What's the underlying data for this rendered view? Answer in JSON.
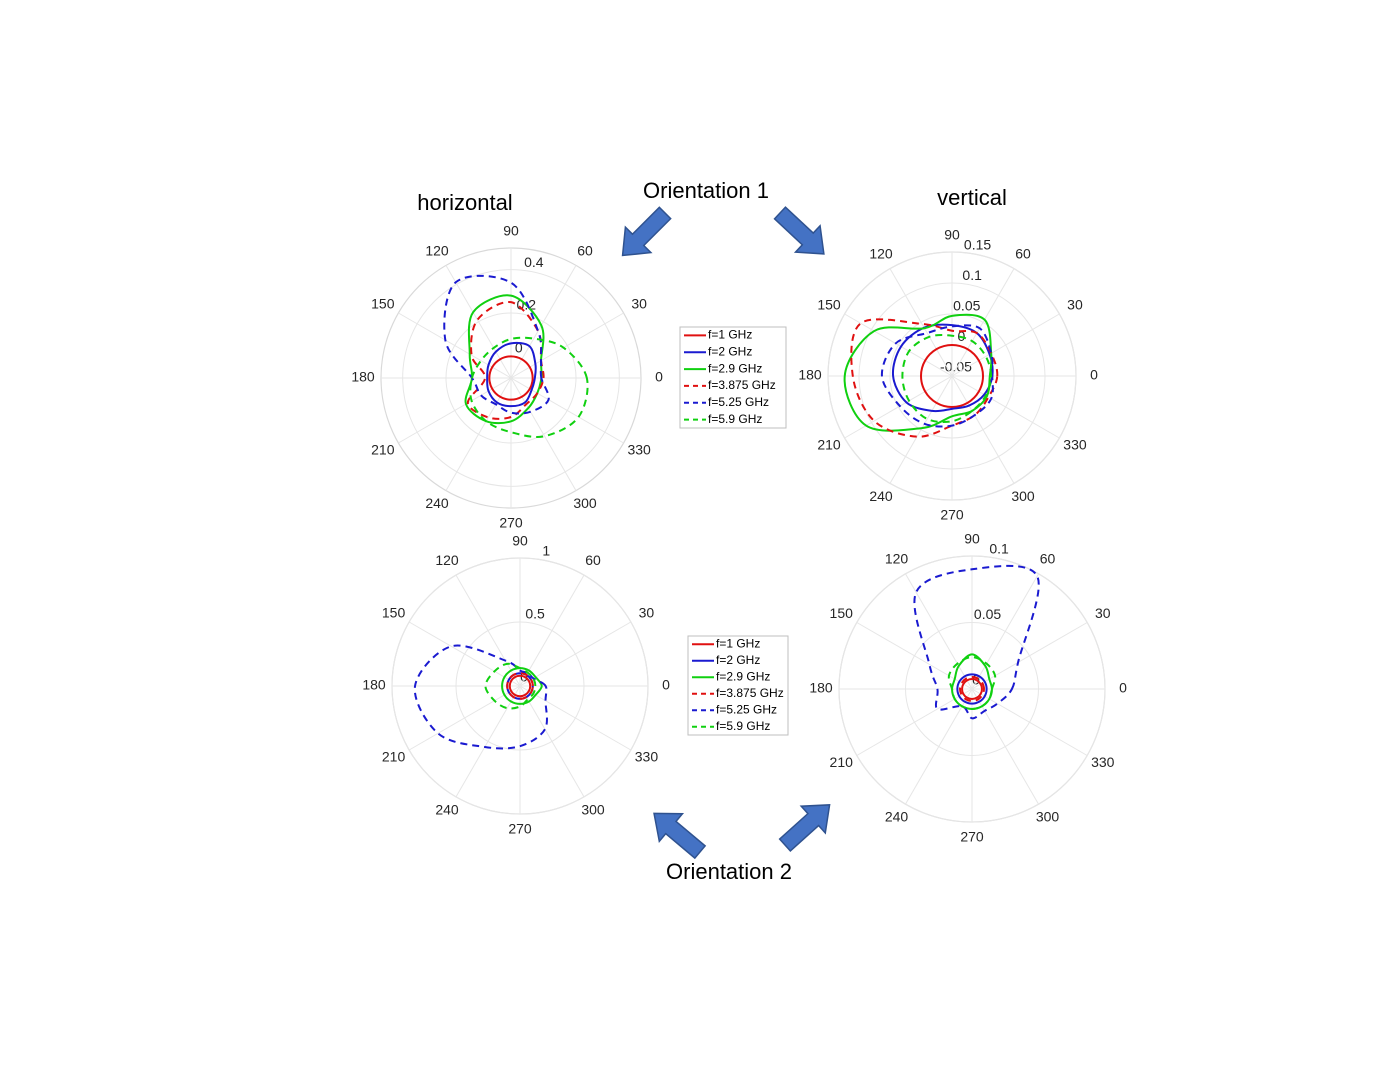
{
  "chart_data": [
    {
      "type": "polar",
      "title": "horizontal",
      "legend": "right",
      "theta": [
        0,
        30,
        60,
        90,
        120,
        150,
        180,
        210,
        240,
        270,
        300,
        330
      ],
      "thetaticks": [
        0,
        30,
        60,
        90,
        120,
        150,
        180,
        210,
        240,
        270,
        300,
        330
      ],
      "rlim": [
        -0.1,
        0.5
      ],
      "rticks": [
        0,
        0.2,
        0.4
      ],
      "series": [
        {
          "name": "f=1 GHz",
          "color": "#e01010",
          "dash": false,
          "values": [
            0,
            0,
            0,
            0,
            0,
            0,
            0,
            0,
            0,
            0,
            0,
            0
          ]
        },
        {
          "name": "f=2 GHz",
          "color": "#1a1ad0",
          "dash": false,
          "values": [
            0.01,
            0.03,
            0.07,
            0.06,
            0.04,
            0.02,
            0.01,
            0.02,
            0.03,
            0.03,
            0.03,
            0.01
          ]
        },
        {
          "name": "f=2.9 GHz",
          "color": "#10d010",
          "dash": false,
          "values": [
            0.04,
            0.06,
            0.18,
            0.28,
            0.25,
            0.12,
            0.08,
            0.14,
            0.13,
            0.1,
            0.06,
            0.04
          ]
        },
        {
          "name": "f=3.875 GHz",
          "color": "#e01010",
          "dash": true,
          "values": [
            0.05,
            0.06,
            0.15,
            0.25,
            0.21,
            0.11,
            0.02,
            0.13,
            0.11,
            0.08,
            0.04,
            0.04
          ]
        },
        {
          "name": "f=5.25 GHz",
          "color": "#1a1ad0",
          "dash": true,
          "values": [
            0.04,
            0.06,
            0.15,
            0.34,
            0.41,
            0.25,
            0.08,
            0.06,
            0.04,
            0.06,
            0.08,
            0.1
          ]
        },
        {
          "name": "f=5.9 GHz",
          "color": "#10d010",
          "dash": true,
          "values": [
            0.25,
            0.18,
            0.11,
            0.08,
            0.06,
            0.06,
            0.08,
            0.11,
            0.13,
            0.15,
            0.21,
            0.26
          ]
        }
      ]
    },
    {
      "type": "polar",
      "title": "vertical",
      "theta": [
        0,
        30,
        60,
        90,
        120,
        150,
        180,
        210,
        240,
        270,
        300,
        330
      ],
      "thetaticks": [
        0,
        30,
        60,
        90,
        120,
        150,
        180,
        210,
        240,
        270,
        300,
        330
      ],
      "rlim": [
        -0.05,
        0.15
      ],
      "rticks": [
        -0.05,
        0,
        0.05,
        0.1,
        0.15
      ],
      "series": [
        {
          "color": "#e01010",
          "dash": false,
          "values": [
            0,
            0,
            0,
            0,
            0,
            0,
            0,
            0,
            0,
            0,
            0,
            0
          ]
        },
        {
          "color": "#1a1ad0",
          "dash": false,
          "values": [
            0.015,
            0.02,
            0.03,
            0.032,
            0.04,
            0.045,
            0.045,
            0.035,
            0.015,
            0.003,
            0.005,
            0.01
          ]
        },
        {
          "color": "#10d010",
          "dash": false,
          "values": [
            0.011,
            0.023,
            0.055,
            0.047,
            0.039,
            0.095,
            0.123,
            0.11,
            0.047,
            0.015,
            0.015,
            0.015
          ]
        },
        {
          "color": "#e01010",
          "dash": true,
          "values": [
            0.023,
            0.023,
            0.03,
            0.023,
            0.047,
            0.12,
            0.11,
            0.095,
            0.063,
            0.03,
            0.023,
            0.018
          ]
        },
        {
          "color": "#1a1ad0",
          "dash": true,
          "values": [
            0.015,
            0.023,
            0.039,
            0.03,
            0.03,
            0.055,
            0.063,
            0.047,
            0.039,
            0.03,
            0.023,
            0.023
          ]
        },
        {
          "color": "#10d010",
          "dash": true,
          "values": [
            0.013,
            0.013,
            0.015,
            0.015,
            0.023,
            0.03,
            0.03,
            0.03,
            0.03,
            0.023,
            0.015,
            0.013
          ]
        }
      ]
    },
    {
      "type": "polar",
      "legend": "right",
      "theta": [
        0,
        30,
        60,
        90,
        120,
        150,
        180,
        210,
        240,
        270,
        300,
        330
      ],
      "thetaticks": [
        0,
        30,
        60,
        90,
        120,
        150,
        180,
        210,
        240,
        270,
        300,
        330
      ],
      "rlim": [
        0,
        1
      ],
      "rticks": [
        0,
        0.5,
        1
      ],
      "series": [
        {
          "name": "f=1 GHz",
          "color": "#e01010",
          "dash": false,
          "values": [
            0.08,
            0.08,
            0.08,
            0.08,
            0.08,
            0.08,
            0.08,
            0.08,
            0.08,
            0.08,
            0.08,
            0.08
          ]
        },
        {
          "name": "f=2 GHz",
          "color": "#1a1ad0",
          "dash": false,
          "values": [
            0.1,
            0.1,
            0.1,
            0.1,
            0.1,
            0.1,
            0.1,
            0.1,
            0.1,
            0.1,
            0.1,
            0.1
          ]
        },
        {
          "name": "f=2.9 GHz",
          "color": "#10d010",
          "dash": false,
          "values": [
            0.17,
            0.14,
            0.14,
            0.14,
            0.14,
            0.14,
            0.14,
            0.14,
            0.14,
            0.14,
            0.14,
            0.14
          ]
        },
        {
          "name": "f=3.875 GHz",
          "color": "#e01010",
          "dash": true,
          "values": [
            0.1,
            0.1,
            0.1,
            0.1,
            0.1,
            0.1,
            0.1,
            0.1,
            0.1,
            0.1,
            0.1,
            0.1
          ]
        },
        {
          "name": "f=5.25 GHz",
          "color": "#1a1ad0",
          "dash": true,
          "values": [
            0.2,
            0.12,
            0.12,
            0.12,
            0.23,
            0.62,
            0.82,
            0.74,
            0.55,
            0.47,
            0.39,
            0.23
          ]
        },
        {
          "name": "f=5.9 GHz",
          "color": "#10d010",
          "dash": true,
          "values": [
            0.12,
            0.12,
            0.12,
            0.14,
            0.2,
            0.23,
            0.27,
            0.23,
            0.2,
            0.16,
            0.12,
            0.12
          ]
        }
      ]
    },
    {
      "type": "polar",
      "theta": [
        0,
        30,
        60,
        90,
        120,
        150,
        180,
        210,
        240,
        270,
        300,
        330
      ],
      "thetaticks": [
        0,
        30,
        60,
        90,
        120,
        150,
        180,
        210,
        240,
        270,
        300,
        330
      ],
      "rlim": [
        0,
        0.1
      ],
      "rticks": [
        0,
        0.05,
        0.1
      ],
      "series": [
        {
          "color": "#e01010",
          "dash": false,
          "values": [
            0.0075,
            0.0075,
            0.0075,
            0.0075,
            0.0075,
            0.0075,
            0.0075,
            0.0075,
            0.0075,
            0.0075,
            0.0075,
            0.0075
          ]
        },
        {
          "color": "#1a1ad0",
          "dash": false,
          "values": [
            0.011,
            0.011,
            0.011,
            0.011,
            0.011,
            0.011,
            0.011,
            0.011,
            0.011,
            0.011,
            0.011,
            0.011
          ]
        },
        {
          "color": "#10d010",
          "dash": false,
          "values": [
            0.015,
            0.015,
            0.02,
            0.026,
            0.02,
            0.015,
            0.015,
            0.015,
            0.015,
            0.015,
            0.015,
            0.015
          ]
        },
        {
          "color": "#e01010",
          "dash": true,
          "values": [
            0.009,
            0.009,
            0.009,
            0.009,
            0.009,
            0.009,
            0.009,
            0.009,
            0.009,
            0.009,
            0.009,
            0.009
          ]
        },
        {
          "color": "#1a1ad0",
          "dash": true,
          "values": [
            0.03,
            0.04,
            0.098,
            0.09,
            0.084,
            0.037,
            0.026,
            0.03,
            0.015,
            0.022,
            0.019,
            0.022
          ]
        },
        {
          "color": "#10d010",
          "dash": true,
          "values": [
            0.015,
            0.02,
            0.022,
            0.024,
            0.022,
            0.02,
            0.015,
            0.015,
            0.015,
            0.015,
            0.015,
            0.015
          ]
        }
      ]
    }
  ],
  "annotations": [
    "Orientation 1",
    "Orientation 2"
  ]
}
